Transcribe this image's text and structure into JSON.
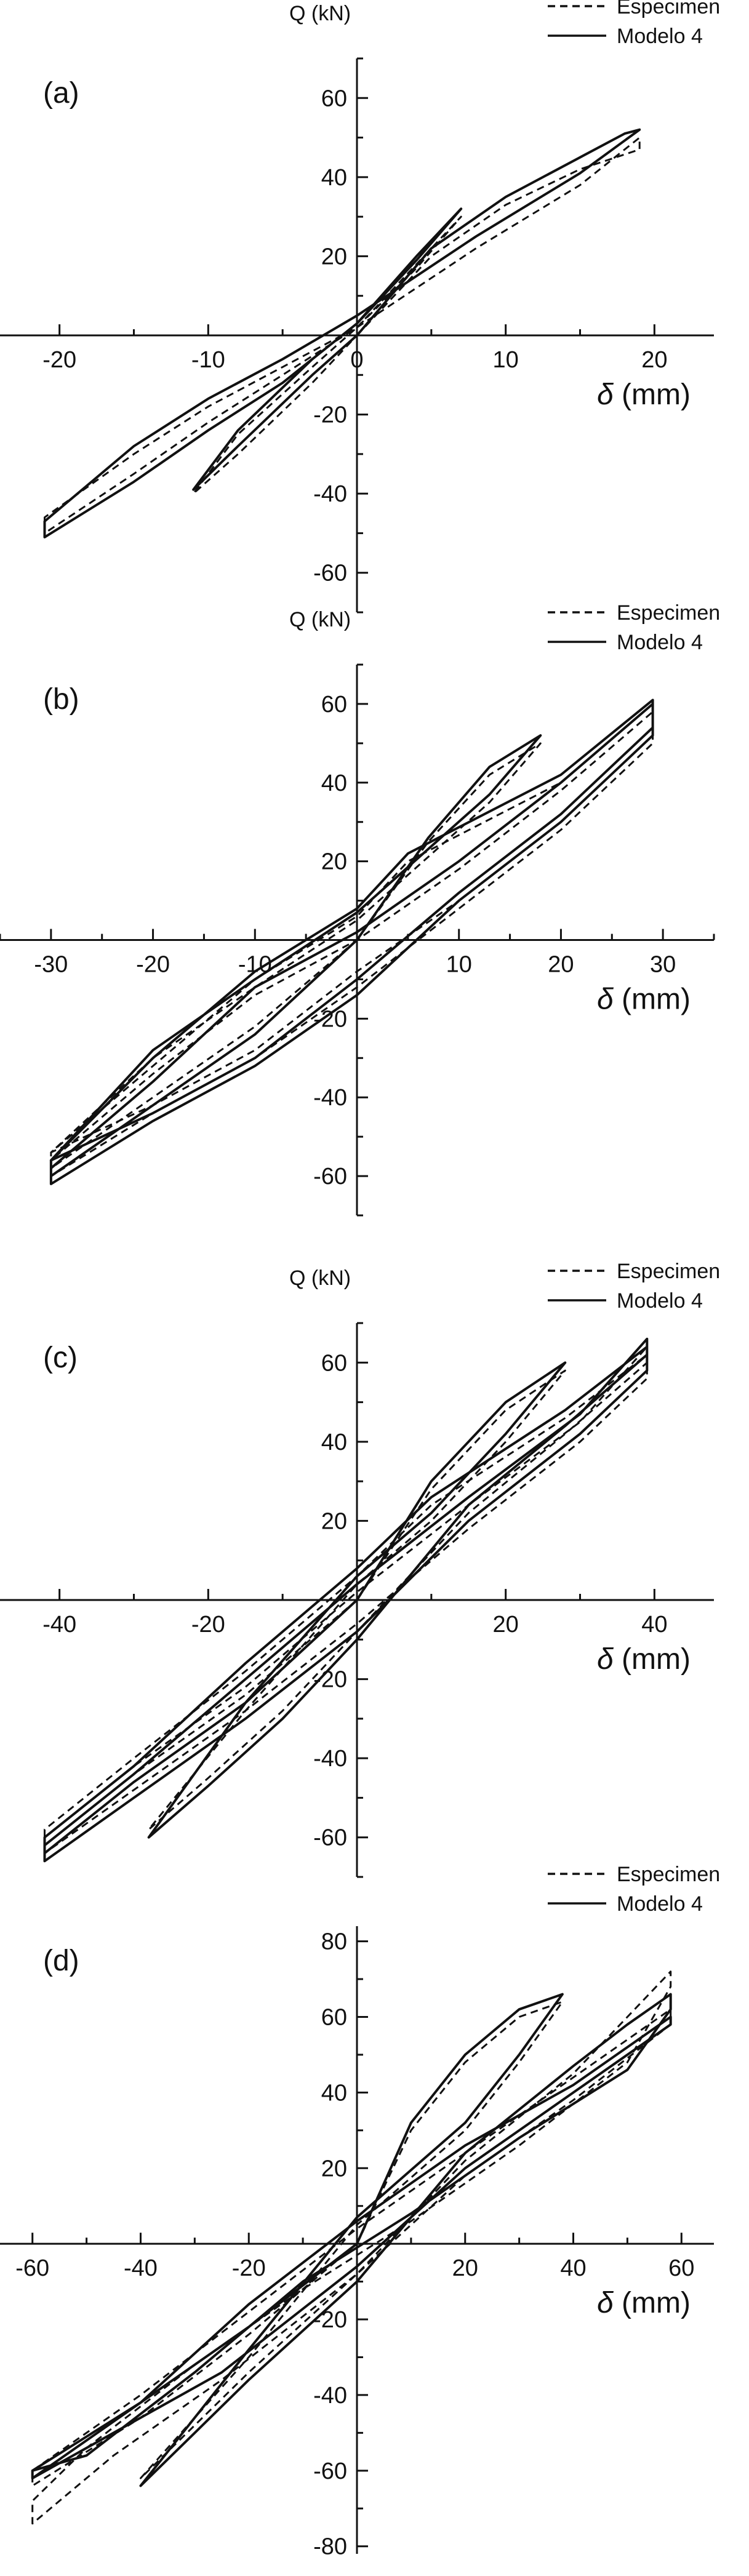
{
  "chart_data": [
    {
      "type": "line",
      "panel_label": "(a)",
      "ylabel": "Q (kN)",
      "xlabel_symbol": "δ",
      "xlabel_unit": "(mm)",
      "xlim": [
        -24,
        24
      ],
      "ylim": [
        -70,
        70
      ],
      "xticks": [
        -20,
        -10,
        0,
        10,
        20
      ],
      "yticks": [
        -60,
        -40,
        -20,
        20,
        40,
        60
      ],
      "grid": false,
      "legend_position": "top-right",
      "series": [
        {
          "name": "Especimen",
          "style": "dashed",
          "x": [
            0,
            5,
            10,
            15,
            19,
            19,
            15,
            8,
            0,
            -5,
            -10,
            -15,
            -21,
            -21,
            -15,
            -10,
            -5,
            0,
            4,
            7,
            4,
            0,
            -3,
            -8,
            -11,
            -8,
            -3,
            0
          ],
          "y": [
            0,
            20,
            33,
            42,
            47,
            50,
            38,
            22,
            2,
            -8,
            -18,
            -30,
            -46,
            -50,
            -35,
            -22,
            -10,
            2,
            18,
            30,
            17,
            2,
            -8,
            -25,
            -40,
            -30,
            -12,
            0
          ]
        },
        {
          "name": "Modelo 4",
          "style": "solid",
          "x": [
            0,
            5,
            10,
            15,
            18,
            19,
            15,
            8,
            0,
            -5,
            -10,
            -15,
            -21,
            -21,
            -15,
            -10,
            -5,
            0,
            4,
            7,
            4,
            0,
            -3,
            -8,
            -11,
            -8,
            -3,
            0
          ],
          "y": [
            0,
            22,
            35,
            45,
            51,
            52,
            41,
            25,
            5,
            -6,
            -16,
            -28,
            -47,
            -51,
            -37,
            -24,
            -12,
            3,
            20,
            32,
            19,
            3,
            -6,
            -24,
            -39,
            -28,
            -10,
            0
          ]
        }
      ]
    },
    {
      "type": "line",
      "panel_label": "(b)",
      "ylabel": "Q (kN)",
      "xlabel_symbol": "δ",
      "xlabel_unit": "(mm)",
      "xlim": [
        -35,
        35
      ],
      "ylim": [
        -70,
        70
      ],
      "xticks": [
        -30,
        -20,
        -10,
        10,
        20,
        30
      ],
      "yticks": [
        -60,
        -40,
        -20,
        20,
        40,
        60
      ],
      "grid": false,
      "legend_position": "top-right",
      "series": [
        {
          "name": "Especimen",
          "style": "dashed",
          "x": [
            0,
            7,
            13,
            18,
            13,
            0,
            -10,
            -20,
            -30,
            -20,
            -10,
            0,
            10,
            20,
            29,
            29,
            20,
            10,
            0,
            -10,
            -20,
            -30,
            -30,
            -20,
            -10,
            0,
            10,
            20,
            29,
            29,
            20,
            5,
            0,
            -10,
            -20,
            -30,
            -30,
            -20,
            -10,
            0
          ],
          "y": [
            0,
            25,
            42,
            50,
            35,
            5,
            -12,
            -30,
            -54,
            -42,
            -28,
            -8,
            10,
            30,
            52,
            58,
            38,
            18,
            0,
            -14,
            -34,
            -56,
            -60,
            -44,
            -30,
            -12,
            8,
            28,
            50,
            60,
            40,
            20,
            6,
            -10,
            -32,
            -54,
            -58,
            -40,
            -22,
            0
          ]
        },
        {
          "name": "Modelo 4",
          "style": "solid",
          "x": [
            0,
            7,
            13,
            18,
            13,
            0,
            -10,
            -20,
            -30,
            -20,
            -10,
            0,
            10,
            20,
            29,
            29,
            20,
            10,
            0,
            -10,
            -20,
            -30,
            -30,
            -20,
            -10,
            0,
            10,
            20,
            29,
            29,
            20,
            5,
            0,
            -10,
            -20,
            -30,
            -30,
            -20,
            -10,
            0
          ],
          "y": [
            0,
            26,
            44,
            52,
            37,
            7,
            -10,
            -28,
            -56,
            -44,
            -30,
            -10,
            12,
            32,
            54,
            60,
            40,
            20,
            2,
            -12,
            -36,
            -58,
            -62,
            -46,
            -32,
            -14,
            10,
            30,
            52,
            61,
            42,
            22,
            8,
            -8,
            -30,
            -56,
            -60,
            -42,
            -24,
            0
          ]
        }
      ]
    },
    {
      "type": "line",
      "panel_label": "(c)",
      "ylabel": "Q (kN)",
      "xlabel_symbol": "δ",
      "xlabel_unit": "(mm)",
      "xlim": [
        -48,
        48
      ],
      "ylim": [
        -70,
        70
      ],
      "xticks": [
        -40,
        -20,
        20,
        40
      ],
      "yticks": [
        -60,
        -40,
        -20,
        20,
        40,
        60
      ],
      "grid": false,
      "legend_position": "top-right",
      "series": [
        {
          "name": "Especimen",
          "style": "dashed",
          "x": [
            0,
            10,
            20,
            28,
            20,
            10,
            0,
            -15,
            -28,
            -20,
            -10,
            0,
            15,
            28,
            39,
            39,
            30,
            15,
            0,
            -15,
            -30,
            -42,
            -42,
            -30,
            -15,
            0,
            15,
            30,
            39,
            39,
            28,
            10,
            0,
            -15,
            -30,
            -42,
            -42,
            -30,
            -15,
            0
          ],
          "y": [
            0,
            28,
            48,
            58,
            40,
            20,
            4,
            -28,
            -58,
            -45,
            -28,
            -8,
            22,
            42,
            60,
            64,
            45,
            24,
            2,
            -22,
            -42,
            -60,
            -64,
            -48,
            -28,
            -6,
            18,
            40,
            56,
            62,
            46,
            24,
            6,
            -18,
            -40,
            -58,
            -62,
            -44,
            -24,
            0
          ]
        },
        {
          "name": "Modelo 4",
          "style": "solid",
          "x": [
            0,
            10,
            20,
            28,
            20,
            10,
            0,
            -15,
            -28,
            -20,
            -10,
            0,
            15,
            28,
            39,
            39,
            30,
            15,
            0,
            -15,
            -30,
            -42,
            -42,
            -30,
            -15,
            0,
            15,
            30,
            39,
            39,
            28,
            10,
            0,
            -15,
            -30,
            -42,
            -42,
            -30,
            -15,
            0
          ],
          "y": [
            0,
            30,
            50,
            60,
            42,
            22,
            6,
            -26,
            -60,
            -47,
            -30,
            -10,
            24,
            44,
            62,
            66,
            47,
            26,
            4,
            -20,
            -44,
            -62,
            -66,
            -50,
            -30,
            -8,
            20,
            42,
            58,
            64,
            48,
            26,
            8,
            -16,
            -42,
            -60,
            -64,
            -46,
            -26,
            0
          ]
        }
      ]
    },
    {
      "type": "line",
      "panel_label": "(d)",
      "ylabel": "",
      "xlabel_symbol": "δ",
      "xlabel_unit": "(mm)",
      "xlim": [
        -66,
        66
      ],
      "ylim": [
        -82,
        84
      ],
      "xticks": [
        -60,
        -40,
        -20,
        20,
        40,
        60
      ],
      "yticks": [
        -80,
        -60,
        -40,
        -20,
        20,
        40,
        60,
        80
      ],
      "grid": false,
      "legend_position": "top-right",
      "series": [
        {
          "name": "Especimen",
          "style": "dashed",
          "x": [
            0,
            10,
            20,
            30,
            38,
            30,
            20,
            0,
            -20,
            -40,
            -30,
            -20,
            0,
            20,
            40,
            50,
            58,
            58,
            50,
            30,
            10,
            -10,
            -30,
            -50,
            -60,
            -60,
            -45,
            -25,
            0,
            20,
            40,
            58,
            58,
            40,
            20,
            0,
            -20,
            -40,
            -60,
            -60,
            -40,
            -20,
            0
          ],
          "y": [
            0,
            30,
            48,
            60,
            64,
            48,
            30,
            5,
            -30,
            -62,
            -48,
            -34,
            -8,
            22,
            45,
            60,
            72,
            68,
            48,
            26,
            6,
            -12,
            -32,
            -54,
            -68,
            -74,
            -56,
            -36,
            -8,
            18,
            38,
            58,
            62,
            44,
            24,
            4,
            -18,
            -40,
            -60,
            -64,
            -46,
            -24,
            0
          ]
        },
        {
          "name": "Modelo 4",
          "style": "solid",
          "x": [
            0,
            10,
            20,
            30,
            38,
            30,
            20,
            0,
            -20,
            -40,
            -30,
            -20,
            0,
            20,
            40,
            50,
            58,
            58,
            50,
            30,
            10,
            -10,
            -30,
            -50,
            -60,
            -60,
            -45,
            -25,
            0,
            20,
            40,
            58,
            58,
            40,
            20,
            0,
            -20,
            -40,
            -60,
            -60,
            -40,
            -20,
            0
          ],
          "y": [
            0,
            32,
            50,
            62,
            66,
            50,
            32,
            7,
            -28,
            -64,
            -50,
            -36,
            -10,
            24,
            47,
            58,
            66,
            62,
            46,
            28,
            8,
            -10,
            -34,
            -56,
            -60,
            -62,
            -50,
            -34,
            -6,
            20,
            40,
            58,
            60,
            42,
            26,
            6,
            -16,
            -42,
            -62,
            -60,
            -42,
            -22,
            0
          ]
        }
      ]
    }
  ]
}
